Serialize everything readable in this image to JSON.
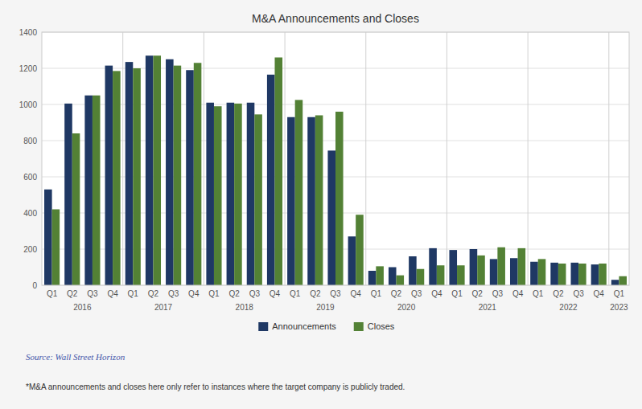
{
  "chart_data": {
    "type": "bar",
    "title": "M&A Announcements and Closes",
    "categories": [
      "Q1",
      "Q2",
      "Q3",
      "Q4",
      "Q1",
      "Q2",
      "Q3",
      "Q4",
      "Q1",
      "Q2",
      "Q3",
      "Q4",
      "Q1",
      "Q2",
      "Q3",
      "Q4",
      "Q1",
      "Q2",
      "Q3",
      "Q4",
      "Q1",
      "Q2",
      "Q3",
      "Q4",
      "Q1",
      "Q2",
      "Q3",
      "Q4",
      "Q1"
    ],
    "annotations": [
      "2016",
      "2017",
      "2018",
      "2019",
      "2020",
      "2021",
      "2022",
      "2023"
    ],
    "series": [
      {
        "name": "Announcements",
        "color": "#1f3864",
        "values": [
          530,
          1005,
          1050,
          1215,
          1235,
          1270,
          1250,
          1190,
          1010,
          1010,
          1010,
          1165,
          930,
          930,
          745,
          270,
          80,
          100,
          160,
          205,
          195,
          200,
          145,
          150,
          130,
          125,
          125,
          115,
          30
        ]
      },
      {
        "name": "Closes",
        "color": "#538135",
        "values": [
          420,
          840,
          1050,
          1185,
          1200,
          1270,
          1215,
          1230,
          990,
          1005,
          945,
          1260,
          1025,
          940,
          960,
          390,
          105,
          55,
          90,
          110,
          110,
          165,
          210,
          205,
          145,
          120,
          120,
          120,
          50
        ]
      }
    ],
    "ylim": [
      0,
      1400
    ],
    "yticks": [
      0,
      200,
      400,
      600,
      800,
      1000,
      1200,
      1400
    ],
    "grid": true,
    "legend": "bottom",
    "source": "Source: Wall Street Horizon",
    "footnote": "*M&A announcements and closes here only refer to instances where the target company is publicly traded."
  }
}
